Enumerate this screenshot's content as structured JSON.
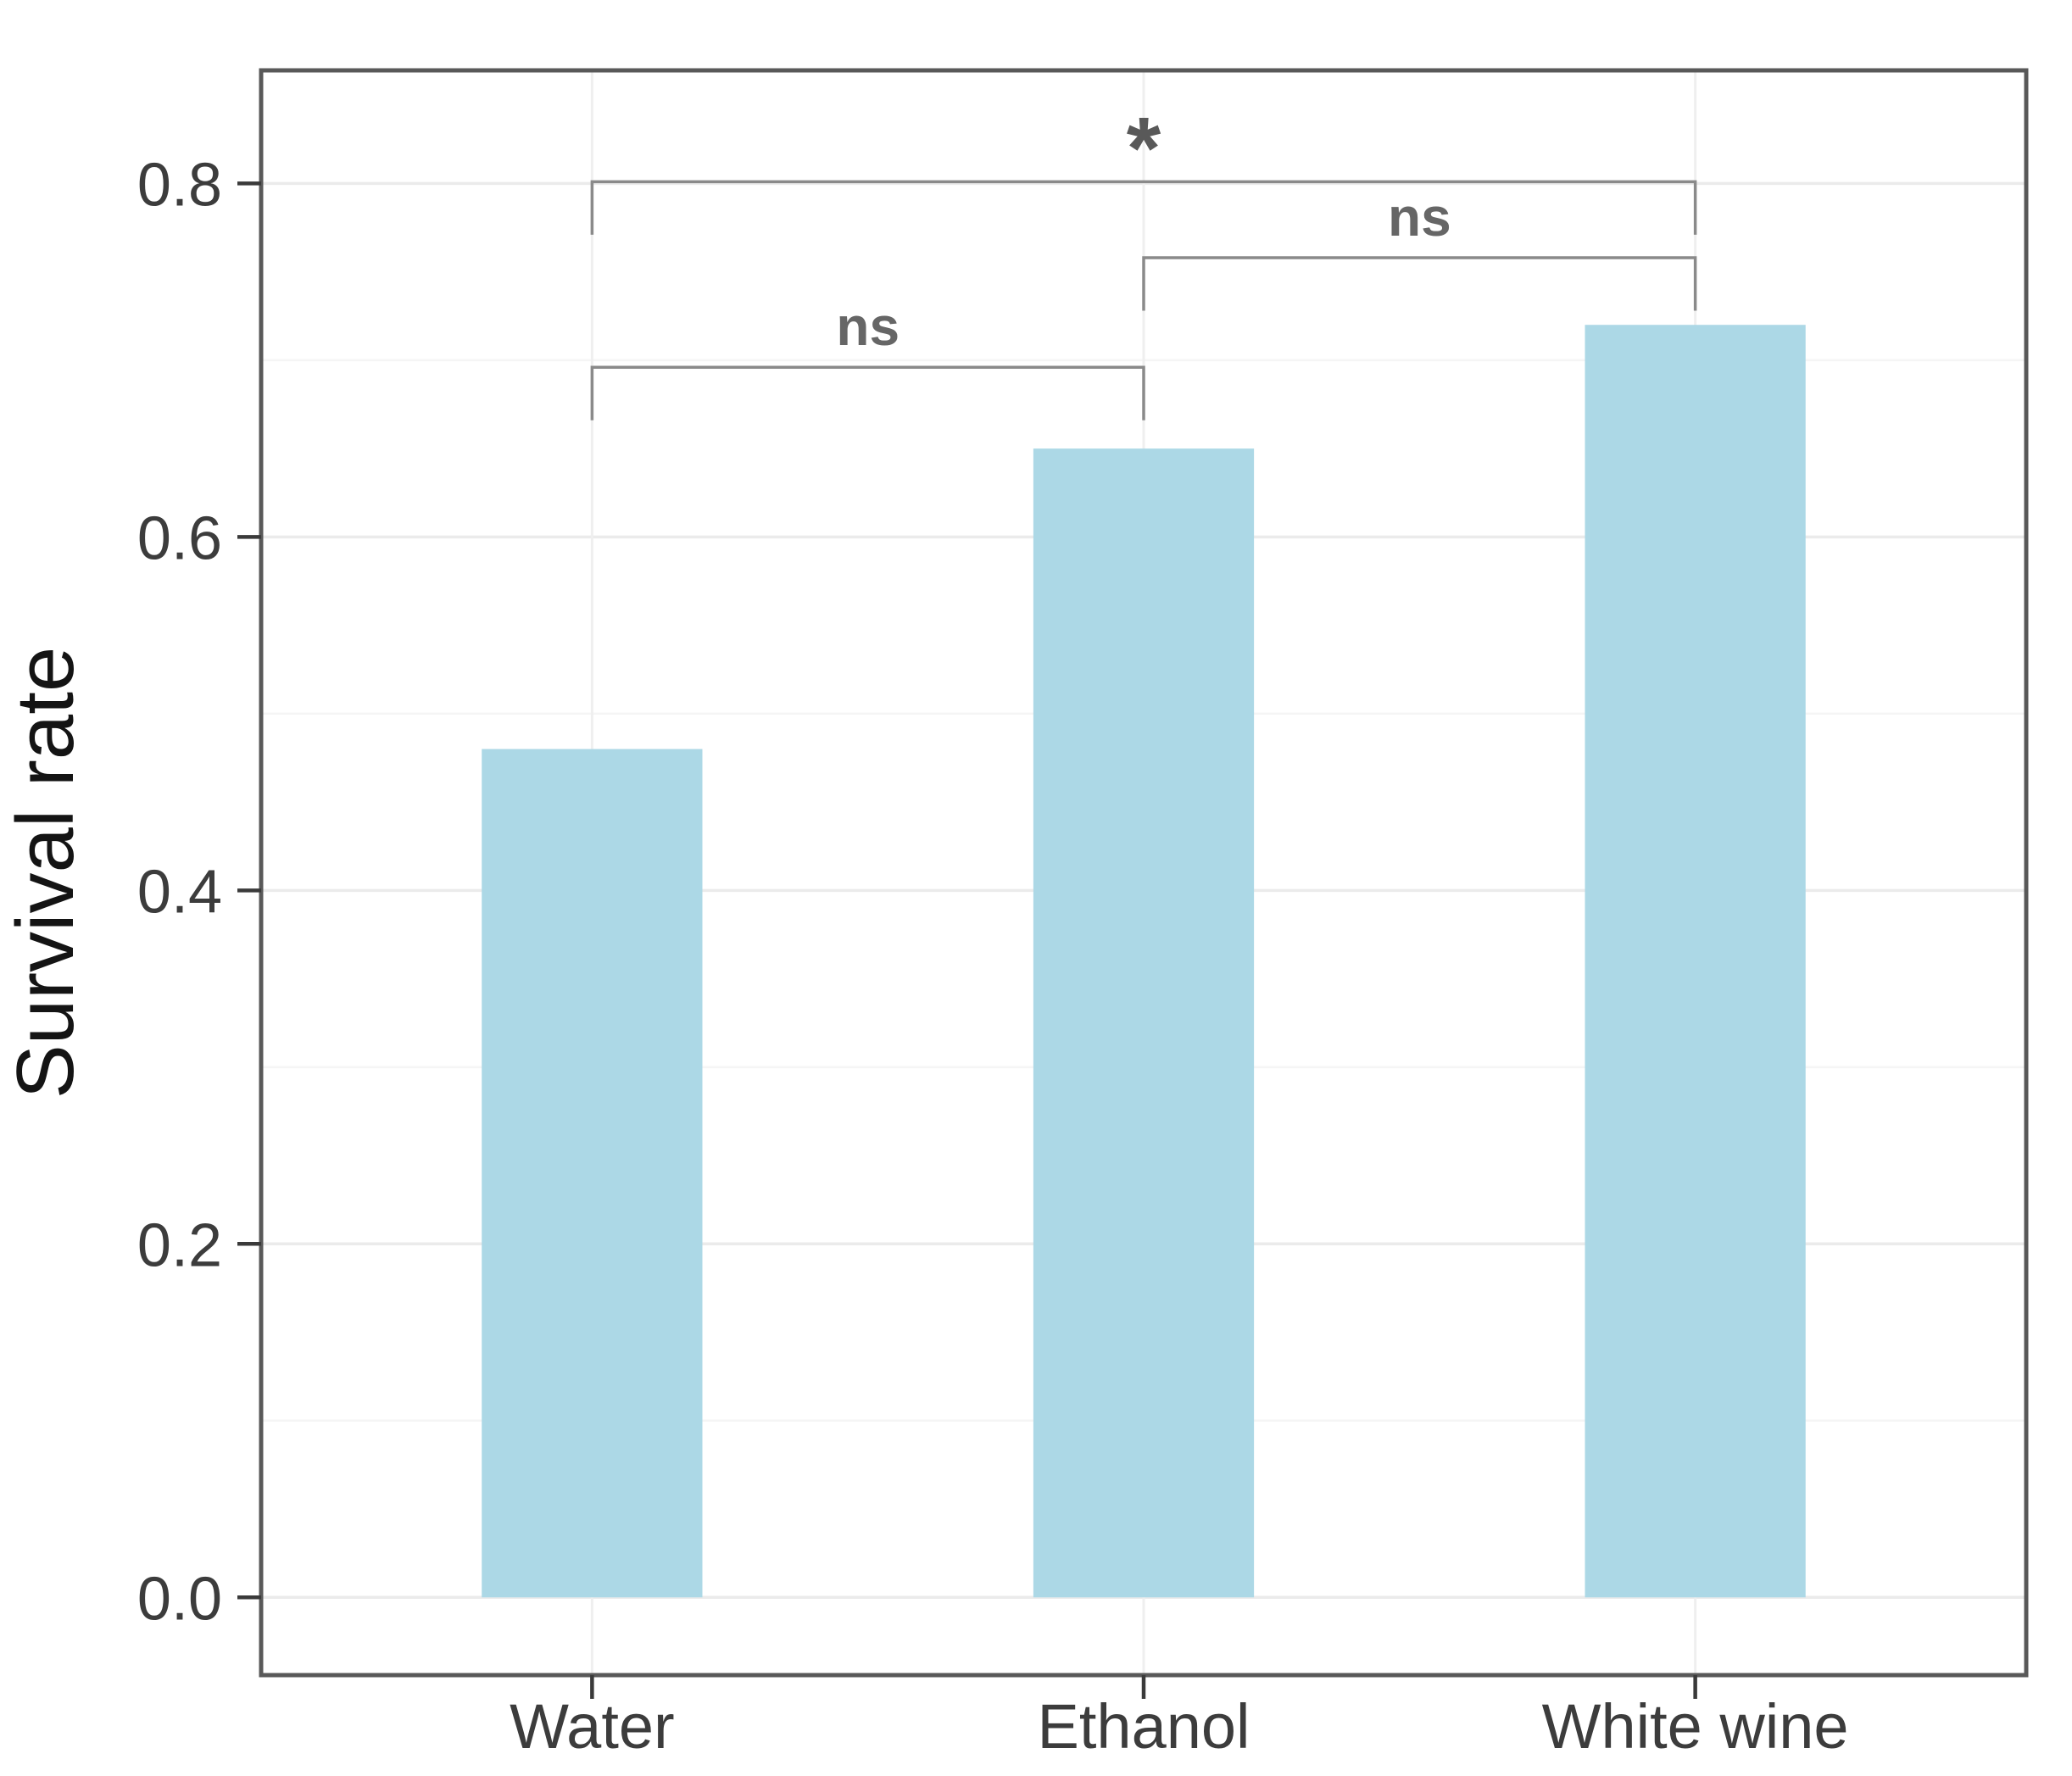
{
  "chart_data": {
    "type": "bar",
    "title": "",
    "categories": [
      "Water",
      "Ethanol",
      "White wine"
    ],
    "values": [
      0.48,
      0.65,
      0.72
    ],
    "xlabel": "",
    "ylabel": "Survival rate",
    "ylim": [
      -0.044,
      0.864
    ],
    "yticks": [
      0,
      0.2,
      0.4,
      0.6,
      0.8
    ],
    "ytick_labels": [
      "0.0",
      "0.2",
      "0.4",
      "0.6",
      "0.8"
    ],
    "y_minor_breaks": [
      0.1,
      0.3,
      0.5,
      0.7
    ],
    "grid": true,
    "legend": "none",
    "panel_border": true,
    "bar_width_frac": 0.4,
    "category_padding": 0.6,
    "annotations": {
      "tip_length": 0.03,
      "comparisons": [
        {
          "group1": "Water",
          "group2": "White wine",
          "label": "*",
          "y": 0.801
        },
        {
          "group1": "Ethanol",
          "group2": "White wine",
          "label": "ns",
          "y": 0.758
        },
        {
          "group1": "Water",
          "group2": "Ethanol",
          "label": "ns",
          "y": 0.696
        }
      ]
    },
    "colors": {
      "background": "#ffffff",
      "bar": "#ACD8E6",
      "grid_major": "#EBEBEB",
      "grid_minor": "#F5F5F5",
      "grid_vertical": "#EFEFEF",
      "panel_border": "#595959",
      "tick": "#3A3A3A",
      "axis_text": "#3C3C3C",
      "axis_title": "#141414",
      "bracket": "#8A8A8A",
      "ns_label": "#666666",
      "star_label": "#595959"
    }
  }
}
